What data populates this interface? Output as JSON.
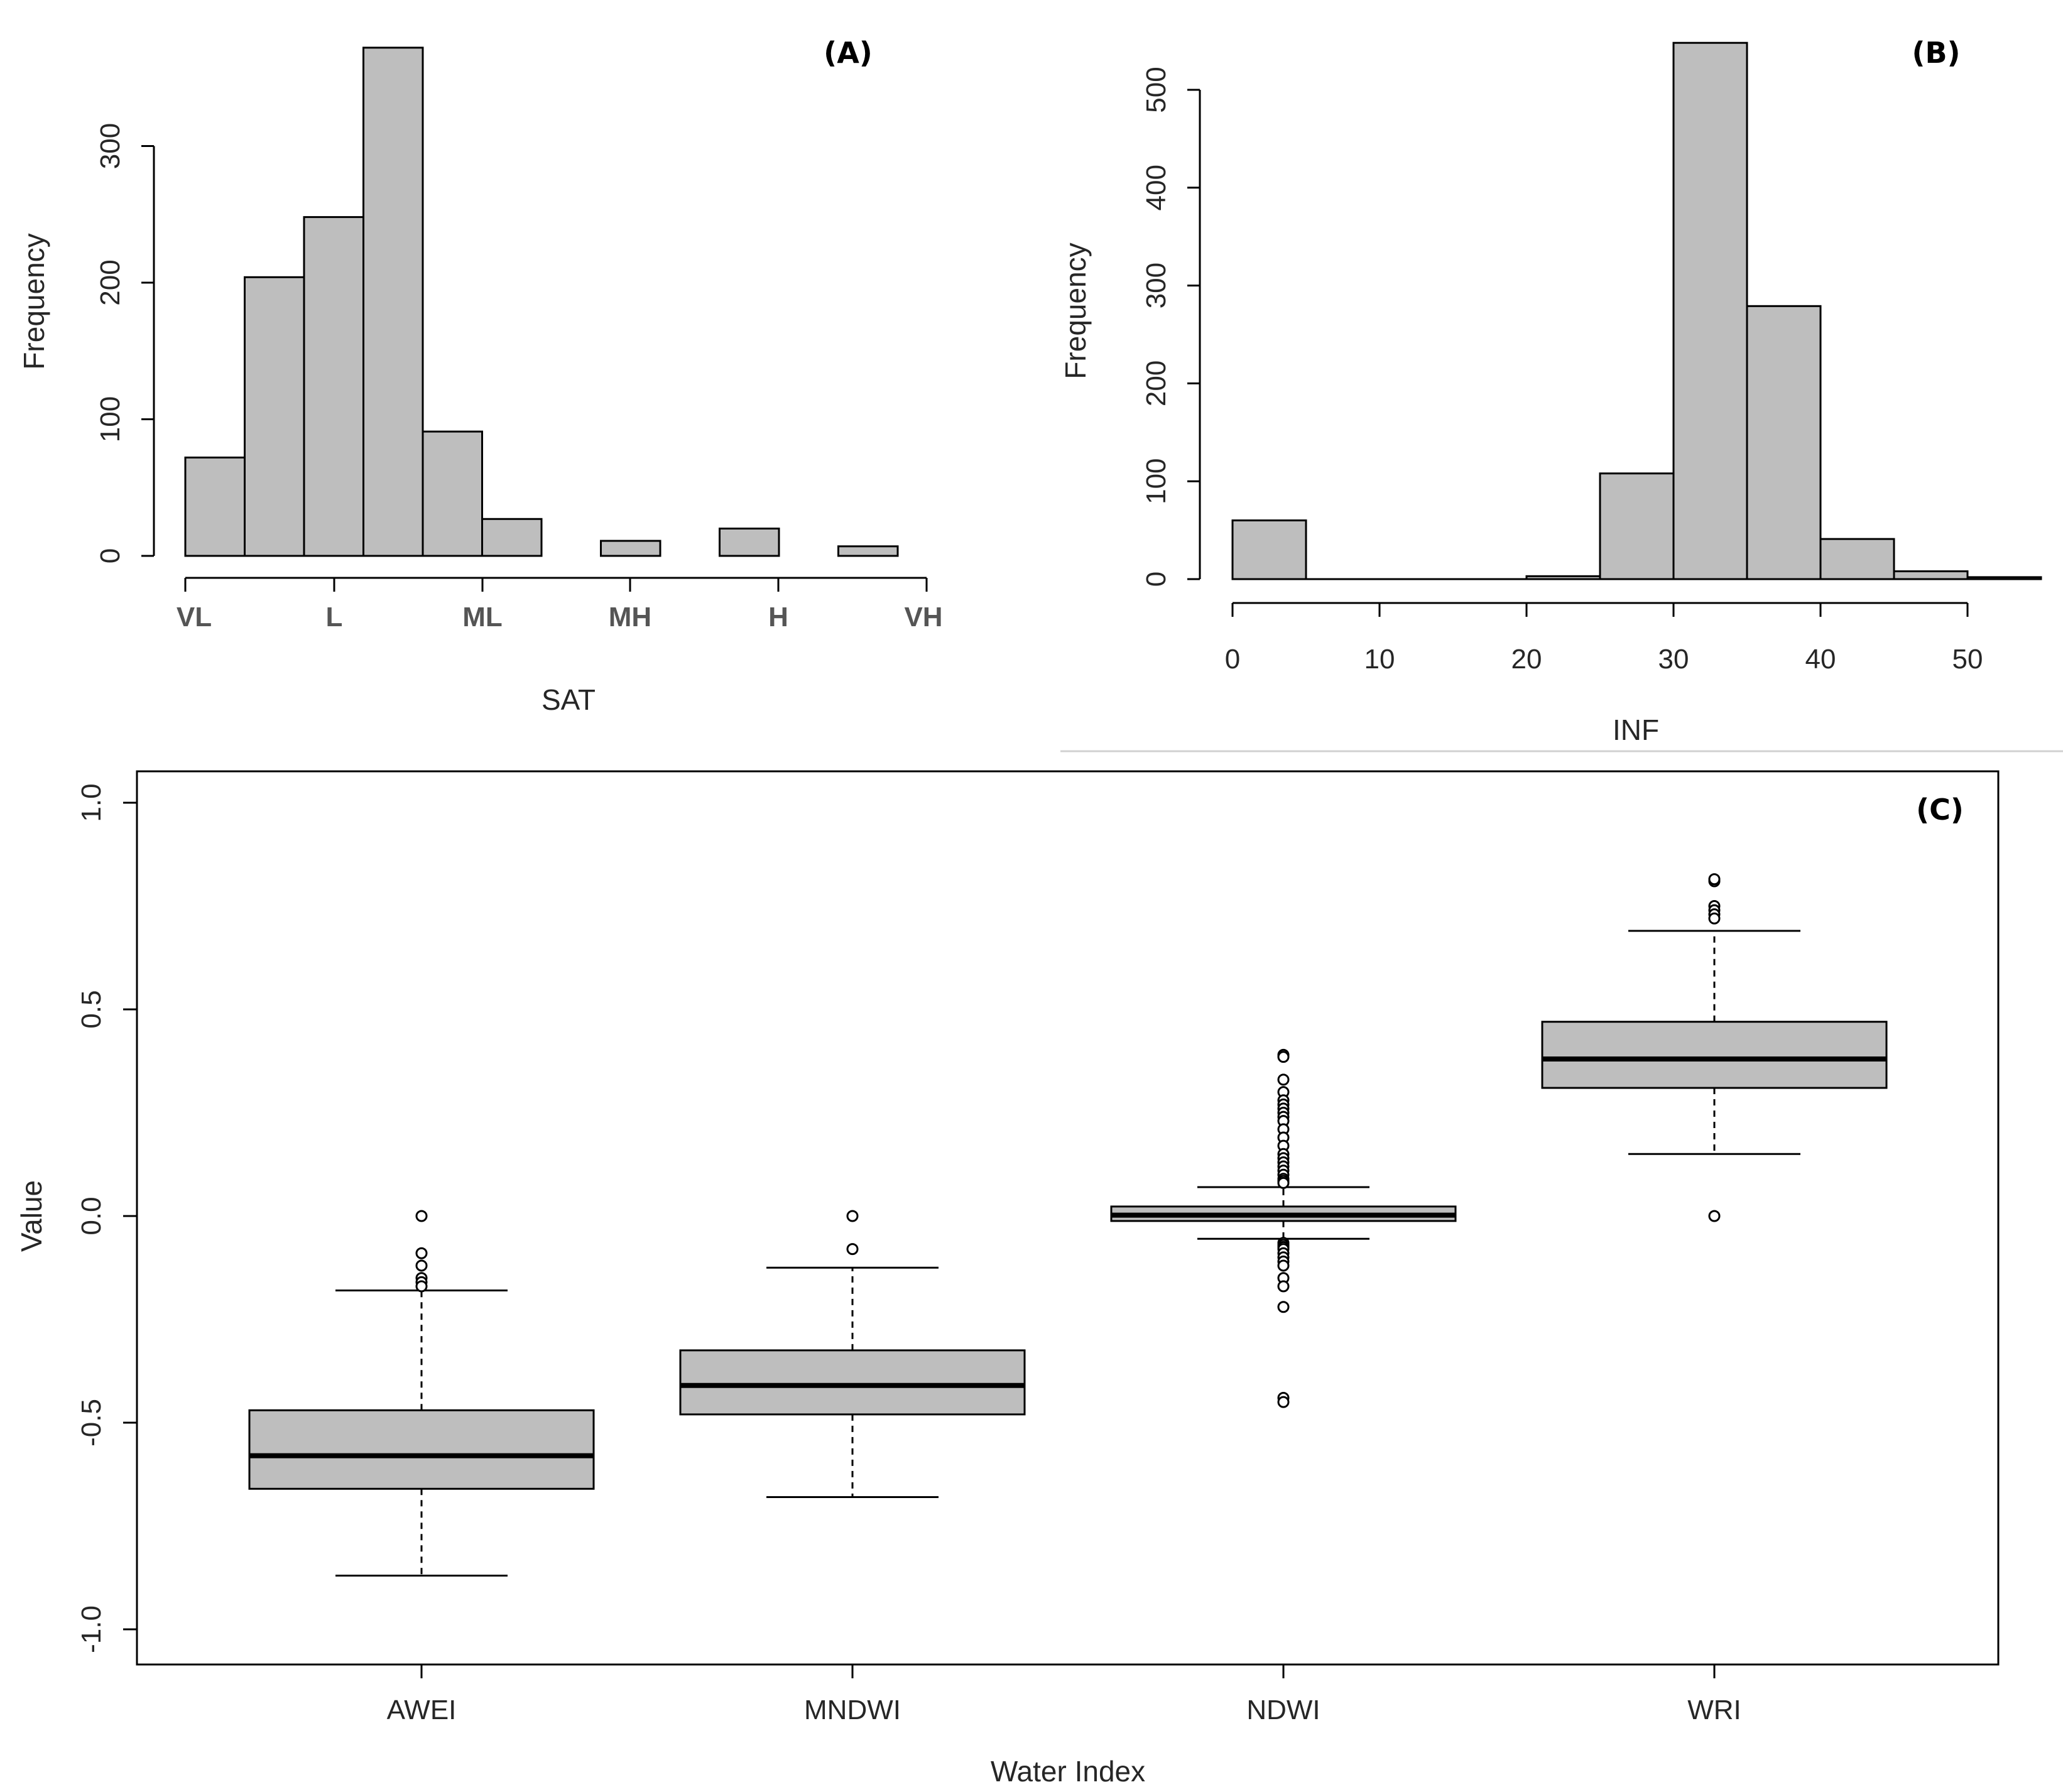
{
  "panels": {
    "a": {
      "label": "(A)"
    },
    "b": {
      "label": "(B)"
    },
    "c": {
      "label": "(C)"
    }
  },
  "chart_data": [
    {
      "id": "A",
      "type": "bar",
      "title": "(A)",
      "xlabel": "SAT",
      "ylabel": "Frequency",
      "x_tick_labels": [
        "VL",
        "L",
        "ML",
        "MH",
        "H",
        "VH"
      ],
      "y_ticks": [
        0,
        100,
        200,
        300
      ],
      "ylim": [
        0,
        370
      ],
      "bins": [
        {
          "start": 0,
          "end": 1,
          "value": 72
        },
        {
          "start": 1,
          "end": 2,
          "value": 204
        },
        {
          "start": 2,
          "end": 3,
          "value": 248
        },
        {
          "start": 3,
          "end": 4,
          "value": 372
        },
        {
          "start": 4,
          "end": 5,
          "value": 91
        },
        {
          "start": 5,
          "end": 6,
          "value": 27
        },
        {
          "start": 6,
          "end": 7,
          "value": 0
        },
        {
          "start": 7,
          "end": 8,
          "value": 11
        },
        {
          "start": 8,
          "end": 9,
          "value": 0
        },
        {
          "start": 9,
          "end": 10,
          "value": 20
        },
        {
          "start": 10,
          "end": 11,
          "value": 0
        },
        {
          "start": 11,
          "end": 12,
          "value": 7
        }
      ]
    },
    {
      "id": "B",
      "type": "bar",
      "title": "(B)",
      "xlabel": "INF",
      "ylabel": "Frequency",
      "x_ticks": [
        0,
        10,
        20,
        30,
        40,
        50
      ],
      "y_ticks": [
        0,
        100,
        200,
        300,
        400,
        500
      ],
      "xlim": [
        0,
        55
      ],
      "ylim": [
        0,
        550
      ],
      "bins": [
        {
          "start": 0,
          "end": 5,
          "value": 60
        },
        {
          "start": 5,
          "end": 10,
          "value": 0
        },
        {
          "start": 10,
          "end": 15,
          "value": 0
        },
        {
          "start": 15,
          "end": 20,
          "value": 0
        },
        {
          "start": 20,
          "end": 25,
          "value": 3
        },
        {
          "start": 25,
          "end": 30,
          "value": 108
        },
        {
          "start": 30,
          "end": 35,
          "value": 548
        },
        {
          "start": 35,
          "end": 40,
          "value": 279
        },
        {
          "start": 40,
          "end": 45,
          "value": 41
        },
        {
          "start": 45,
          "end": 50,
          "value": 8
        },
        {
          "start": 50,
          "end": 55,
          "value": 2
        }
      ]
    },
    {
      "id": "C",
      "type": "boxplot",
      "title": "(C)",
      "xlabel": "Water Index",
      "ylabel": "Value",
      "categories": [
        "AWEI",
        "MNDWI",
        "NDWI",
        "WRI"
      ],
      "y_ticks": [
        -1.0,
        -0.5,
        0.0,
        0.5,
        1.0
      ],
      "y_tick_labels": [
        "-1.0",
        "-0.5",
        "0.0",
        "0.5",
        "1.0"
      ],
      "ylim": [
        -1.07,
        1.1
      ],
      "boxes": [
        {
          "name": "AWEI",
          "whisker_low": -0.87,
          "q1": -0.66,
          "median": -0.58,
          "q3": -0.47,
          "whisker_high": -0.18,
          "outliers": [
            0.0,
            -0.09,
            -0.12,
            -0.15,
            -0.16,
            -0.17
          ]
        },
        {
          "name": "MNDWI",
          "whisker_low": -0.68,
          "q1": -0.48,
          "median": -0.41,
          "q3": -0.325,
          "whisker_high": -0.125,
          "outliers": [
            0.0,
            -0.08
          ]
        },
        {
          "name": "NDWI",
          "whisker_low": -0.055,
          "q1": -0.012,
          "median": 0.002,
          "q3": 0.023,
          "whisker_high": 0.07,
          "outliers": [
            0.39,
            0.385,
            0.33,
            0.3,
            0.28,
            0.27,
            0.26,
            0.25,
            0.24,
            0.23,
            0.21,
            0.19,
            0.17,
            0.15,
            0.14,
            0.13,
            0.12,
            0.11,
            0.1,
            0.09,
            0.085,
            0.08,
            -0.065,
            -0.07,
            -0.075,
            -0.08,
            -0.09,
            -0.1,
            -0.11,
            -0.12,
            -0.15,
            -0.17,
            -0.22,
            -0.44,
            -0.45
          ]
        },
        {
          "name": "WRI",
          "whisker_low": 0.15,
          "q1": 0.31,
          "median": 0.38,
          "q3": 0.47,
          "whisker_high": 0.69,
          "outliers": [
            0.81,
            0.815,
            0.75,
            0.74,
            0.73,
            0.72,
            0.0
          ]
        }
      ]
    }
  ]
}
